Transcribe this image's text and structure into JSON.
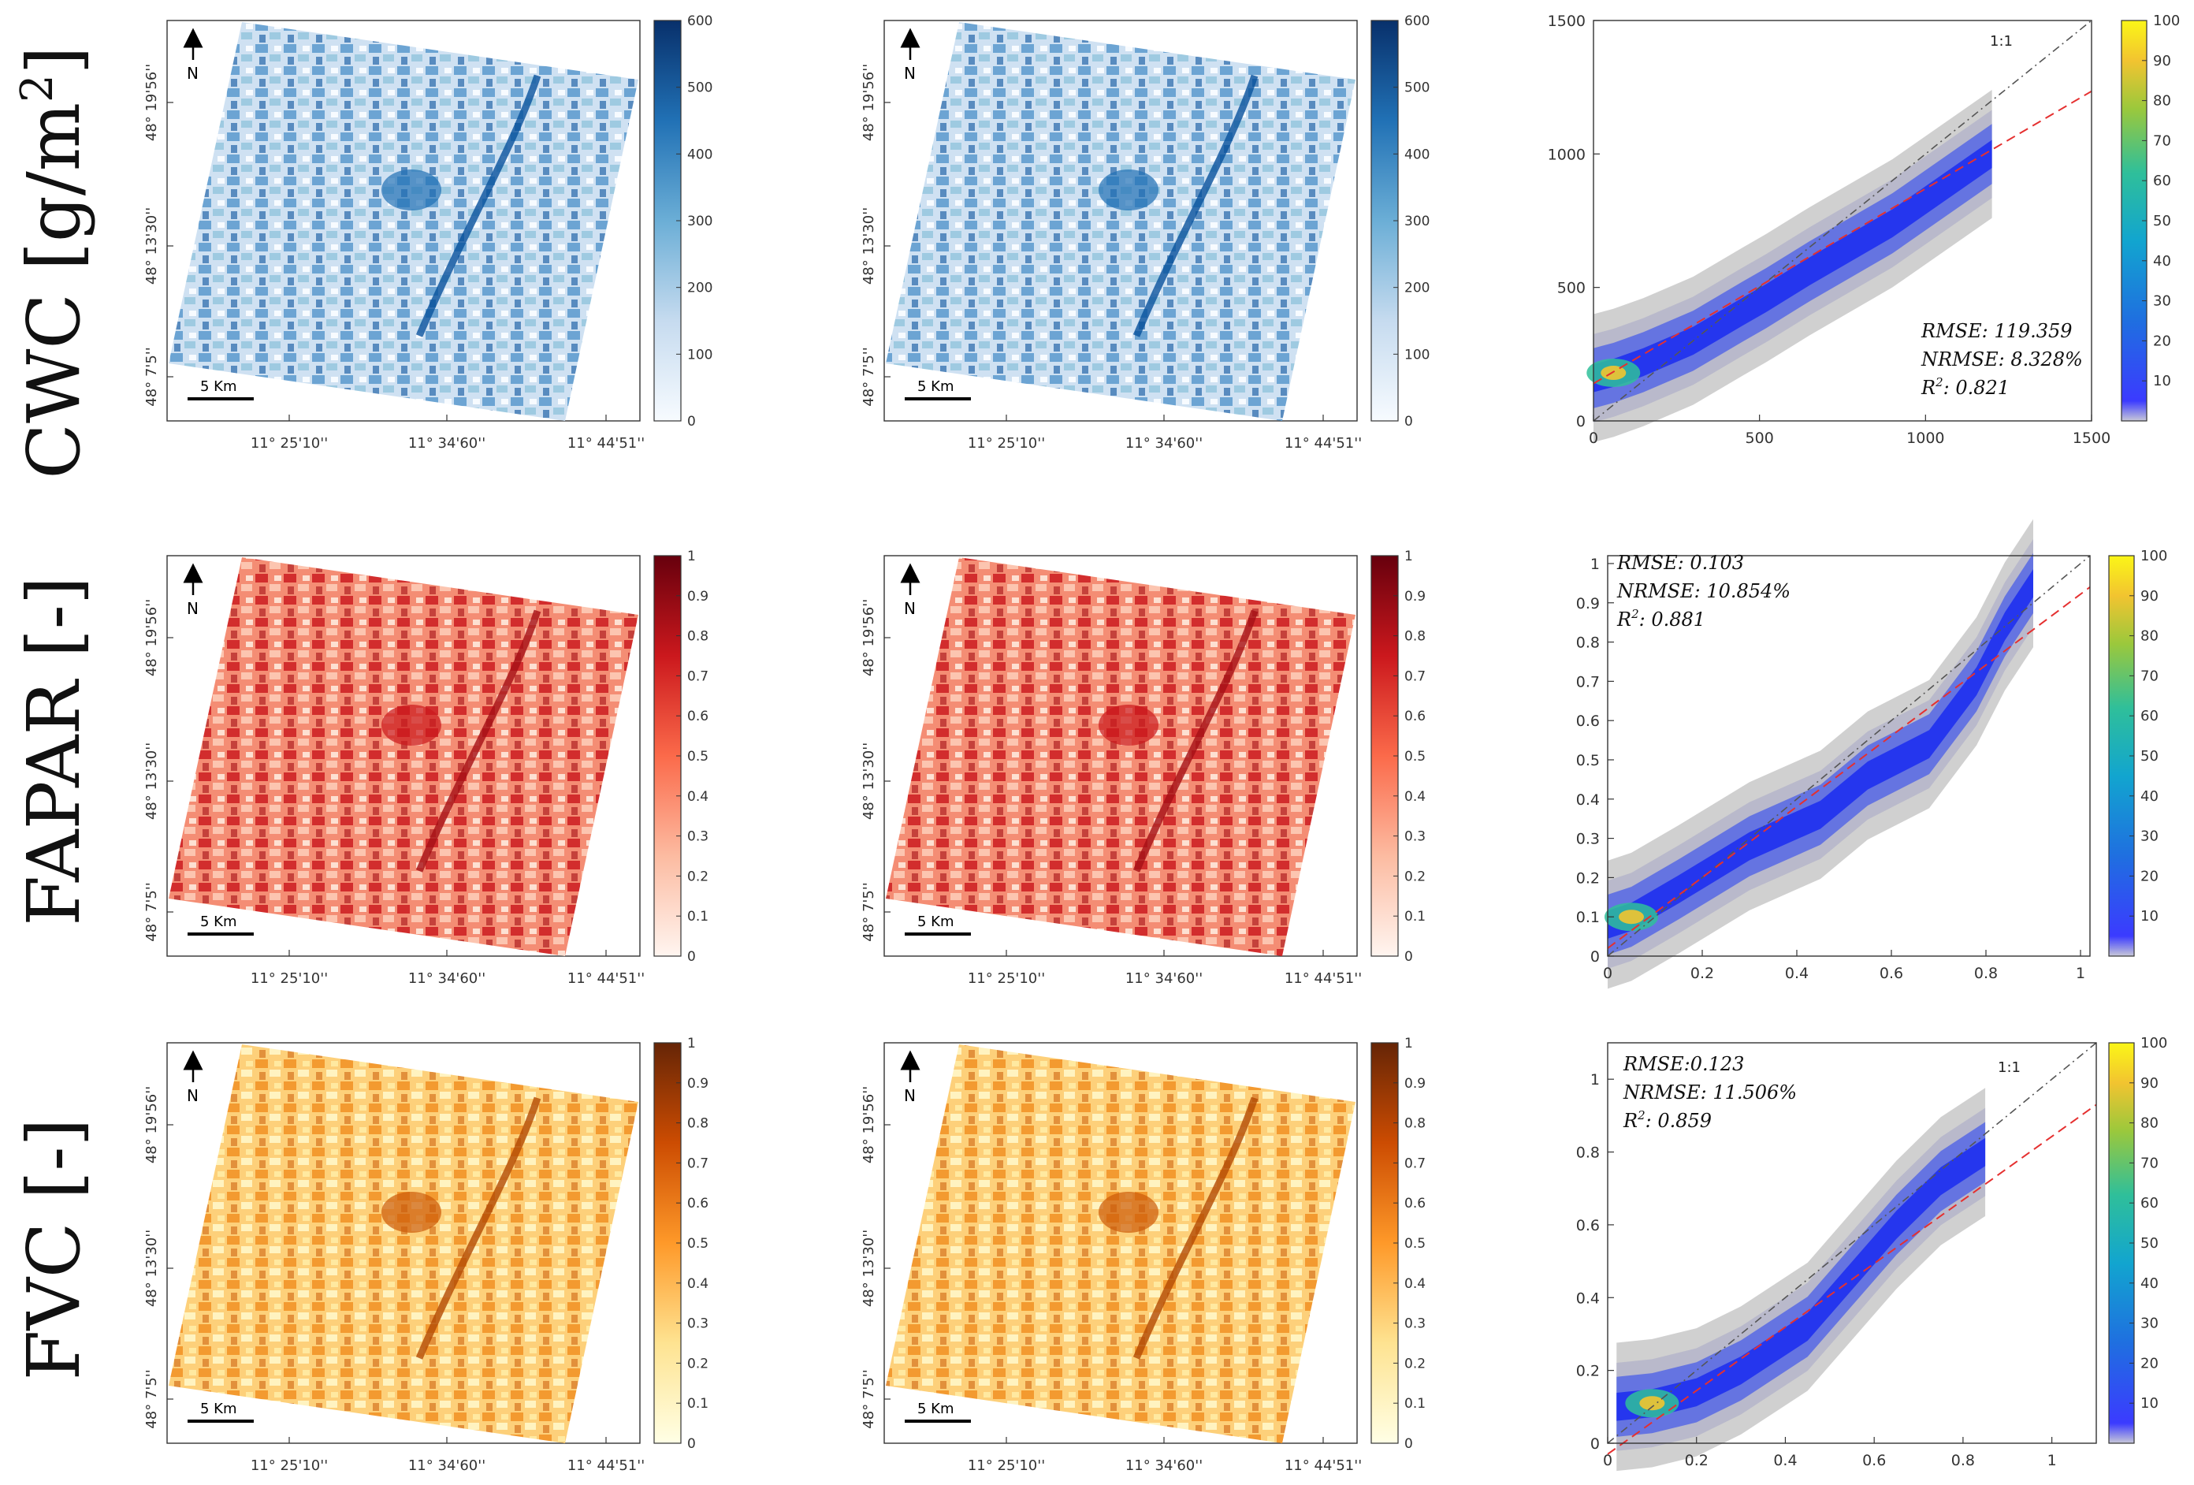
{
  "figure": {
    "row_labels": [
      "CWC [g/m",
      "FAPAR [-]",
      "FVC [-]"
    ],
    "cwc_superscript": "2",
    "cwc_close": "]"
  },
  "map_common": {
    "north_label": "N",
    "scale_label": "5 Km",
    "lon_ticks": [
      "11° 25'10''",
      "11° 34'60''",
      "11° 44'51''"
    ],
    "lat_ticks": [
      "48° 19'56''",
      "48° 13'30''",
      "48° 7'5''"
    ]
  },
  "colors": {
    "blue_low": "#f7fbff",
    "blue_high": "#08306b",
    "red_low": "#fff5f0",
    "red_high": "#67000d",
    "orange_low": "#ffffe5",
    "orange_high": "#662506",
    "identity_line": "#555555",
    "fit_line": "#e53030",
    "background_points": "#c8c8c8"
  },
  "maps": [
    {
      "row": 0,
      "col": 0,
      "colorbar_ticks": [
        "0",
        "100",
        "200",
        "300",
        "400",
        "500",
        "600"
      ],
      "colormap": "blues"
    },
    {
      "row": 0,
      "col": 1,
      "colorbar_ticks": [
        "0",
        "100",
        "200",
        "300",
        "400",
        "500",
        "600"
      ],
      "colormap": "blues"
    },
    {
      "row": 1,
      "col": 0,
      "colorbar_ticks": [
        "0",
        "0.1",
        "0.2",
        "0.3",
        "0.4",
        "0.5",
        "0.6",
        "0.7",
        "0.8",
        "0.9",
        "1"
      ],
      "colormap": "reds"
    },
    {
      "row": 1,
      "col": 1,
      "colorbar_ticks": [
        "0",
        "0.1",
        "0.2",
        "0.3",
        "0.4",
        "0.5",
        "0.6",
        "0.7",
        "0.8",
        "0.9",
        "1"
      ],
      "colormap": "reds"
    },
    {
      "row": 2,
      "col": 0,
      "colorbar_ticks": [
        "0",
        "0.1",
        "0.2",
        "0.3",
        "0.4",
        "0.5",
        "0.6",
        "0.7",
        "0.8",
        "0.9",
        "1"
      ],
      "colormap": "oranges"
    },
    {
      "row": 2,
      "col": 1,
      "colorbar_ticks": [
        "0",
        "0.1",
        "0.2",
        "0.3",
        "0.4",
        "0.5",
        "0.6",
        "0.7",
        "0.8",
        "0.9",
        "1"
      ],
      "colormap": "oranges"
    }
  ],
  "chart_data": [
    {
      "type": "scatter",
      "variable": "CWC",
      "xlim": [
        0,
        1500
      ],
      "ylim": [
        0,
        1500
      ],
      "x_ticks": [
        "0",
        "500",
        "1000",
        "1500"
      ],
      "y_ticks": [
        "0",
        "500",
        "1000",
        "1500"
      ],
      "identity_label": "1:1",
      "fit_line": {
        "x": [
          0,
          1500
        ],
        "y": [
          140,
          1235
        ]
      },
      "density_ridge": {
        "x": [
          0,
          60,
          150,
          300,
          450,
          520,
          650,
          900,
          1200
        ],
        "y": [
          160,
          180,
          220,
          300,
          410,
          460,
          560,
          740,
          1000
        ]
      },
      "stats": [
        "RMSE: 119.359",
        "NRMSE: 8.328%",
        "R",
        "2",
        ": 0.821"
      ],
      "colorbar_ticks": [
        "10",
        "20",
        "30",
        "40",
        "50",
        "60",
        "70",
        "80",
        "90",
        "100"
      ],
      "colorbar_range": [
        0,
        100
      ]
    },
    {
      "type": "scatter",
      "variable": "FAPAR",
      "xlim": [
        0,
        1.02
      ],
      "ylim": [
        0,
        1.02
      ],
      "x_ticks": [
        "0",
        "0.2",
        "0.4",
        "0.6",
        "0.8",
        "1"
      ],
      "y_ticks": [
        "0",
        "0.1",
        "0.2",
        "0.3",
        "0.4",
        "0.5",
        "0.6",
        "0.7",
        "0.8",
        "0.9",
        "1"
      ],
      "identity_label": "",
      "fit_line": {
        "x": [
          0,
          1.02
        ],
        "y": [
          0.02,
          0.94
        ]
      },
      "density_ridge": {
        "x": [
          0,
          0.05,
          0.15,
          0.3,
          0.45,
          0.55,
          0.68,
          0.78,
          0.84,
          0.9
        ],
        "y": [
          0.08,
          0.1,
          0.17,
          0.28,
          0.36,
          0.46,
          0.54,
          0.7,
          0.84,
          0.95
        ]
      },
      "stats": [
        "RMSE: 0.103",
        "NRMSE: 10.854%",
        "R",
        "2",
        ": 0.881"
      ],
      "colorbar_ticks": [
        "10",
        "20",
        "30",
        "40",
        "50",
        "60",
        "70",
        "80",
        "90",
        "100"
      ],
      "colorbar_range": [
        0,
        100
      ]
    },
    {
      "type": "scatter",
      "variable": "FVC",
      "xlim": [
        0,
        1.1
      ],
      "ylim": [
        0,
        1.1
      ],
      "x_ticks": [
        "0",
        "0.2",
        "0.4",
        "0.6",
        "0.8",
        "1"
      ],
      "y_ticks": [
        "0",
        "0.2",
        "0.4",
        "0.6",
        "0.8",
        "1"
      ],
      "identity_label": "1:1",
      "fit_line": {
        "x": [
          0,
          1.1
        ],
        "y": [
          -0.03,
          0.93
        ]
      },
      "density_ridge": {
        "x": [
          0.02,
          0.1,
          0.2,
          0.3,
          0.45,
          0.55,
          0.65,
          0.75,
          0.85
        ],
        "y": [
          0.1,
          0.11,
          0.14,
          0.2,
          0.32,
          0.46,
          0.6,
          0.72,
          0.8
        ]
      },
      "stats": [
        "RMSE:0.123",
        "NRMSE: 11.506%",
        "R",
        "2",
        ": 0.859"
      ],
      "colorbar_ticks": [
        "10",
        "20",
        "30",
        "40",
        "50",
        "60",
        "70",
        "80",
        "90",
        "100"
      ],
      "colorbar_range": [
        0,
        100
      ]
    }
  ]
}
